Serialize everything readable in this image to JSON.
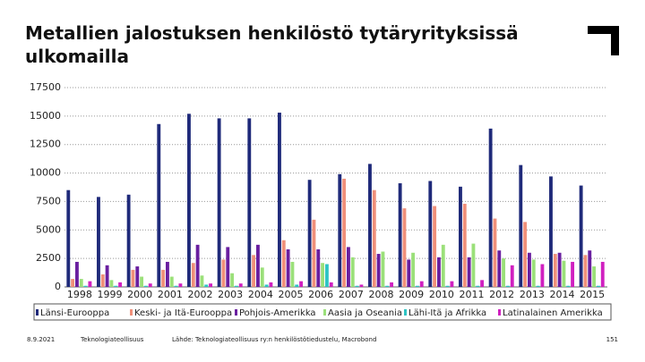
{
  "chart_data": {
    "type": "bar",
    "title": "Metallien jalostuksen henkilöstö tytäryrityksissä ulkomailla",
    "categories": [
      "1998",
      "1999",
      "2000",
      "2001",
      "2002",
      "2003",
      "2004",
      "2005",
      "2006",
      "2007",
      "2008",
      "2009",
      "2010",
      "2011",
      "2012",
      "2013",
      "2014",
      "2015"
    ],
    "series": [
      {
        "name": "Länsi-Eurooppa",
        "color": "#1f2a7a",
        "values": [
          8500,
          7900,
          8100,
          14300,
          15200,
          14800,
          14800,
          15300,
          9400,
          9900,
          10800,
          9100,
          9300,
          8800,
          13900,
          10700,
          9700,
          8900
        ]
      },
      {
        "name": "Keski- ja Itä-Eurooppa",
        "color": "#f0907a",
        "values": [
          700,
          1100,
          1500,
          1500,
          2100,
          2400,
          2800,
          4100,
          5900,
          9500,
          8500,
          6900,
          7100,
          7300,
          6000,
          5700,
          2900,
          2800
        ]
      },
      {
        "name": "Pohjois-Amerikka",
        "color": "#6a1fa0",
        "values": [
          2200,
          1900,
          1800,
          2200,
          3700,
          3500,
          3700,
          3300,
          3300,
          3500,
          2900,
          2400,
          2600,
          2600,
          3200,
          3000,
          3000,
          3200
        ]
      },
      {
        "name": "Aasia ja Oseania",
        "color": "#9be07a",
        "values": [
          700,
          600,
          900,
          900,
          1000,
          1200,
          1700,
          2200,
          2100,
          2600,
          3100,
          3000,
          3700,
          3800,
          2500,
          2400,
          2300,
          1800
        ]
      },
      {
        "name": "Lähi-Itä ja Afrikka",
        "color": "#2ec4c4",
        "values": [
          100,
          100,
          100,
          100,
          200,
          100,
          200,
          200,
          2000,
          100,
          100,
          100,
          100,
          100,
          100,
          100,
          100,
          100
        ]
      },
      {
        "name": "Latinalainen Amerikka",
        "color": "#d020c0",
        "values": [
          500,
          400,
          300,
          300,
          300,
          300,
          400,
          500,
          400,
          200,
          400,
          500,
          500,
          600,
          1900,
          2000,
          2200,
          2200
        ]
      }
    ],
    "ylim": [
      0,
      17500
    ],
    "yticks": [
      0,
      2500,
      5000,
      7500,
      10000,
      12500,
      15000,
      17500
    ],
    "grid": true
  },
  "footer": {
    "date": "8.9.2021",
    "org": "Teknologiateollisuus",
    "source": "Lähde: Teknologiateollisuus ry:n henkilöstötiedustelu, Macrobond",
    "page": "151"
  }
}
